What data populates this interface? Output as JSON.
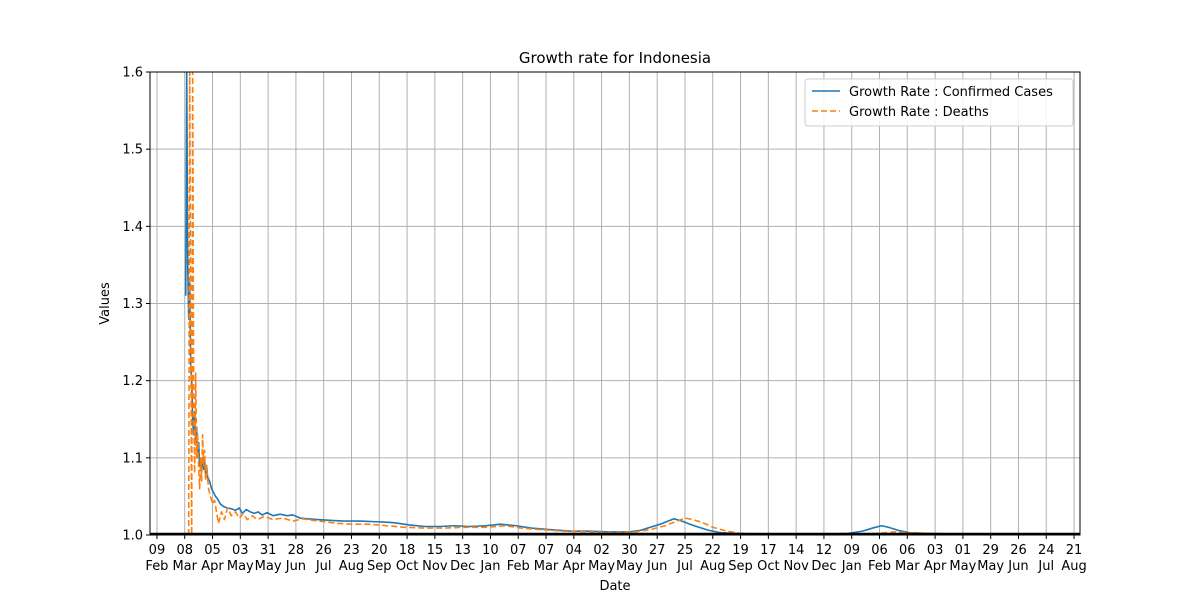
{
  "chart_data": {
    "type": "line",
    "title": "Growth rate for Indonesia",
    "xlabel": "Date",
    "ylabel": "Values",
    "ylim": [
      1.0,
      1.6
    ],
    "yticks": [
      "1.0",
      "1.1",
      "1.2",
      "1.3",
      "1.4",
      "1.5",
      "1.6"
    ],
    "xlim": [
      "2020-02-02",
      "2022-08-27"
    ],
    "xticks": [
      {
        "date": "2020-02-09",
        "day": "09",
        "month": "Feb"
      },
      {
        "date": "2020-03-08",
        "day": "08",
        "month": "Mar"
      },
      {
        "date": "2020-04-05",
        "day": "05",
        "month": "Apr"
      },
      {
        "date": "2020-05-03",
        "day": "03",
        "month": "May"
      },
      {
        "date": "2020-05-31",
        "day": "31",
        "month": "May"
      },
      {
        "date": "2020-06-28",
        "day": "28",
        "month": "Jun"
      },
      {
        "date": "2020-07-26",
        "day": "26",
        "month": "Jul"
      },
      {
        "date": "2020-08-23",
        "day": "23",
        "month": "Aug"
      },
      {
        "date": "2020-09-20",
        "day": "20",
        "month": "Sep"
      },
      {
        "date": "2020-10-18",
        "day": "18",
        "month": "Oct"
      },
      {
        "date": "2020-11-15",
        "day": "15",
        "month": "Nov"
      },
      {
        "date": "2020-12-13",
        "day": "13",
        "month": "Dec"
      },
      {
        "date": "2021-01-10",
        "day": "10",
        "month": "Jan"
      },
      {
        "date": "2021-02-07",
        "day": "07",
        "month": "Feb"
      },
      {
        "date": "2021-03-07",
        "day": "07",
        "month": "Mar"
      },
      {
        "date": "2021-04-04",
        "day": "04",
        "month": "Apr"
      },
      {
        "date": "2021-05-02",
        "day": "02",
        "month": "May"
      },
      {
        "date": "2021-05-30",
        "day": "30",
        "month": "May"
      },
      {
        "date": "2021-06-27",
        "day": "27",
        "month": "Jun"
      },
      {
        "date": "2021-07-25",
        "day": "25",
        "month": "Jul"
      },
      {
        "date": "2021-08-22",
        "day": "22",
        "month": "Aug"
      },
      {
        "date": "2021-09-19",
        "day": "19",
        "month": "Sep"
      },
      {
        "date": "2021-10-17",
        "day": "17",
        "month": "Oct"
      },
      {
        "date": "2021-11-14",
        "day": "14",
        "month": "Nov"
      },
      {
        "date": "2021-12-12",
        "day": "12",
        "month": "Dec"
      },
      {
        "date": "2022-01-09",
        "day": "09",
        "month": "Jan"
      },
      {
        "date": "2022-02-06",
        "day": "06",
        "month": "Feb"
      },
      {
        "date": "2022-03-06",
        "day": "06",
        "month": "Mar"
      },
      {
        "date": "2022-04-03",
        "day": "03",
        "month": "Apr"
      },
      {
        "date": "2022-05-01",
        "day": "01",
        "month": "May"
      },
      {
        "date": "2022-05-29",
        "day": "29",
        "month": "May"
      },
      {
        "date": "2022-06-26",
        "day": "26",
        "month": "Jun"
      },
      {
        "date": "2022-07-24",
        "day": "24",
        "month": "Jul"
      },
      {
        "date": "2022-08-21",
        "day": "21",
        "month": "Aug"
      }
    ],
    "grid": true,
    "legend_position": "top-right",
    "series": [
      {
        "name": "Growth Rate : Confirmed Cases",
        "color": "#1f77b4",
        "style": "solid",
        "points": [
          [
            "2020-03-09",
            1.31
          ],
          [
            "2020-03-10",
            1.6
          ],
          [
            "2020-03-11",
            1.35
          ],
          [
            "2020-03-12",
            1.28
          ],
          [
            "2020-03-13",
            1.33
          ],
          [
            "2020-03-14",
            1.22
          ],
          [
            "2020-03-15",
            1.2
          ],
          [
            "2020-03-16",
            1.15
          ],
          [
            "2020-03-17",
            1.13
          ],
          [
            "2020-03-18",
            1.16
          ],
          [
            "2020-03-19",
            1.12
          ],
          [
            "2020-03-20",
            1.14
          ],
          [
            "2020-03-21",
            1.1
          ],
          [
            "2020-03-22",
            1.12
          ],
          [
            "2020-03-23",
            1.09
          ],
          [
            "2020-03-24",
            1.095
          ],
          [
            "2020-03-25",
            1.085
          ],
          [
            "2020-03-26",
            1.1
          ],
          [
            "2020-03-27",
            1.085
          ],
          [
            "2020-03-28",
            1.095
          ],
          [
            "2020-03-29",
            1.08
          ],
          [
            "2020-03-30",
            1.09
          ],
          [
            "2020-03-31",
            1.075
          ],
          [
            "2020-04-02",
            1.07
          ],
          [
            "2020-04-04",
            1.06
          ],
          [
            "2020-04-06",
            1.055
          ],
          [
            "2020-04-08",
            1.05
          ],
          [
            "2020-04-10",
            1.047
          ],
          [
            "2020-04-13",
            1.04
          ],
          [
            "2020-04-16",
            1.037
          ],
          [
            "2020-04-20",
            1.035
          ],
          [
            "2020-04-24",
            1.034
          ],
          [
            "2020-04-28",
            1.032
          ],
          [
            "2020-05-02",
            1.035
          ],
          [
            "2020-05-05",
            1.028
          ],
          [
            "2020-05-09",
            1.033
          ],
          [
            "2020-05-13",
            1.03
          ],
          [
            "2020-05-17",
            1.028
          ],
          [
            "2020-05-21",
            1.03
          ],
          [
            "2020-05-25",
            1.026
          ],
          [
            "2020-05-30",
            1.029
          ],
          [
            "2020-06-05",
            1.025
          ],
          [
            "2020-06-12",
            1.027
          ],
          [
            "2020-06-19",
            1.025
          ],
          [
            "2020-06-25",
            1.026
          ],
          [
            "2020-07-02",
            1.022
          ],
          [
            "2020-07-10",
            1.021
          ],
          [
            "2020-07-20",
            1.02
          ],
          [
            "2020-08-01",
            1.019
          ],
          [
            "2020-08-15",
            1.018
          ],
          [
            "2020-09-01",
            1.018
          ],
          [
            "2020-09-20",
            1.017
          ],
          [
            "2020-10-05",
            1.016
          ],
          [
            "2020-10-20",
            1.013
          ],
          [
            "2020-11-05",
            1.011
          ],
          [
            "2020-11-20",
            1.011
          ],
          [
            "2020-12-05",
            1.012
          ],
          [
            "2020-12-20",
            1.011
          ],
          [
            "2021-01-05",
            1.012
          ],
          [
            "2021-01-20",
            1.014
          ],
          [
            "2021-02-05",
            1.012
          ],
          [
            "2021-02-20",
            1.009
          ],
          [
            "2021-03-10",
            1.007
          ],
          [
            "2021-04-01",
            1.005
          ],
          [
            "2021-04-20",
            1.005
          ],
          [
            "2021-05-10",
            1.004
          ],
          [
            "2021-05-30",
            1.004
          ],
          [
            "2021-06-10",
            1.006
          ],
          [
            "2021-06-20",
            1.01
          ],
          [
            "2021-06-30",
            1.014
          ],
          [
            "2021-07-08",
            1.018
          ],
          [
            "2021-07-14",
            1.021
          ],
          [
            "2021-07-22",
            1.018
          ],
          [
            "2021-07-30",
            1.014
          ],
          [
            "2021-08-08",
            1.01
          ],
          [
            "2021-08-18",
            1.006
          ],
          [
            "2021-08-30",
            1.003
          ],
          [
            "2021-09-15",
            1.002
          ],
          [
            "2021-10-10",
            1.001
          ],
          [
            "2021-11-10",
            1.001
          ],
          [
            "2021-12-10",
            1.001
          ],
          [
            "2022-01-05",
            1.002
          ],
          [
            "2022-01-20",
            1.005
          ],
          [
            "2022-01-30",
            1.009
          ],
          [
            "2022-02-08",
            1.012
          ],
          [
            "2022-02-15",
            1.01
          ],
          [
            "2022-02-25",
            1.006
          ],
          [
            "2022-03-08",
            1.003
          ],
          [
            "2022-03-25",
            1.002
          ],
          [
            "2022-05-01",
            1.001
          ],
          [
            "2022-06-10",
            1.001
          ],
          [
            "2022-07-24",
            1.001
          ]
        ]
      },
      {
        "name": "Growth Rate : Deaths",
        "color": "#ff7f0e",
        "style": "dashed",
        "points": [
          [
            "2020-03-12",
            1.0
          ],
          [
            "2020-03-13",
            1.6
          ],
          [
            "2020-03-14",
            1.3
          ],
          [
            "2020-03-15",
            1.0
          ],
          [
            "2020-03-16",
            1.6
          ],
          [
            "2020-03-17",
            1.18
          ],
          [
            "2020-03-18",
            1.08
          ],
          [
            "2020-03-19",
            1.21
          ],
          [
            "2020-03-20",
            1.1
          ],
          [
            "2020-03-21",
            1.13
          ],
          [
            "2020-03-22",
            1.09
          ],
          [
            "2020-03-23",
            1.06
          ],
          [
            "2020-03-24",
            1.1
          ],
          [
            "2020-03-25",
            1.07
          ],
          [
            "2020-03-26",
            1.13
          ],
          [
            "2020-03-27",
            1.09
          ],
          [
            "2020-03-28",
            1.11
          ],
          [
            "2020-03-29",
            1.07
          ],
          [
            "2020-03-30",
            1.09
          ],
          [
            "2020-04-01",
            1.06
          ],
          [
            "2020-04-03",
            1.05
          ],
          [
            "2020-04-05",
            1.04
          ],
          [
            "2020-04-07",
            1.045
          ],
          [
            "2020-04-09",
            1.03
          ],
          [
            "2020-04-11",
            1.015
          ],
          [
            "2020-04-14",
            1.03
          ],
          [
            "2020-04-17",
            1.02
          ],
          [
            "2020-04-20",
            1.035
          ],
          [
            "2020-04-24",
            1.025
          ],
          [
            "2020-04-28",
            1.03
          ],
          [
            "2020-05-02",
            1.022
          ],
          [
            "2020-05-06",
            1.028
          ],
          [
            "2020-05-10",
            1.02
          ],
          [
            "2020-05-15",
            1.025
          ],
          [
            "2020-05-20",
            1.02
          ],
          [
            "2020-05-27",
            1.024
          ],
          [
            "2020-06-05",
            1.02
          ],
          [
            "2020-06-15",
            1.022
          ],
          [
            "2020-06-25",
            1.018
          ],
          [
            "2020-07-05",
            1.021
          ],
          [
            "2020-07-15",
            1.019
          ],
          [
            "2020-07-28",
            1.017
          ],
          [
            "2020-08-10",
            1.015
          ],
          [
            "2020-08-25",
            1.014
          ],
          [
            "2020-09-10",
            1.014
          ],
          [
            "2020-09-28",
            1.012
          ],
          [
            "2020-10-15",
            1.01
          ],
          [
            "2020-11-05",
            1.009
          ],
          [
            "2020-11-25",
            1.009
          ],
          [
            "2020-12-15",
            1.01
          ],
          [
            "2021-01-05",
            1.01
          ],
          [
            "2021-01-25",
            1.012
          ],
          [
            "2021-02-10",
            1.009
          ],
          [
            "2021-03-01",
            1.007
          ],
          [
            "2021-03-25",
            1.005
          ],
          [
            "2021-04-20",
            1.004
          ],
          [
            "2021-05-15",
            1.003
          ],
          [
            "2021-06-05",
            1.004
          ],
          [
            "2021-06-20",
            1.007
          ],
          [
            "2021-07-05",
            1.012
          ],
          [
            "2021-07-15",
            1.017
          ],
          [
            "2021-07-25",
            1.022
          ],
          [
            "2021-08-02",
            1.02
          ],
          [
            "2021-08-12",
            1.016
          ],
          [
            "2021-08-22",
            1.01
          ],
          [
            "2021-09-05",
            1.005
          ],
          [
            "2021-09-20",
            1.002
          ],
          [
            "2021-10-15",
            1.001
          ],
          [
            "2021-11-15",
            1.001
          ],
          [
            "2021-12-15",
            1.001
          ],
          [
            "2022-01-15",
            1.001
          ],
          [
            "2022-02-05",
            1.002
          ],
          [
            "2022-02-20",
            1.004
          ],
          [
            "2022-03-08",
            1.003
          ],
          [
            "2022-04-01",
            1.002
          ],
          [
            "2022-05-15",
            1.001
          ],
          [
            "2022-07-24",
            1.001
          ]
        ]
      }
    ]
  }
}
